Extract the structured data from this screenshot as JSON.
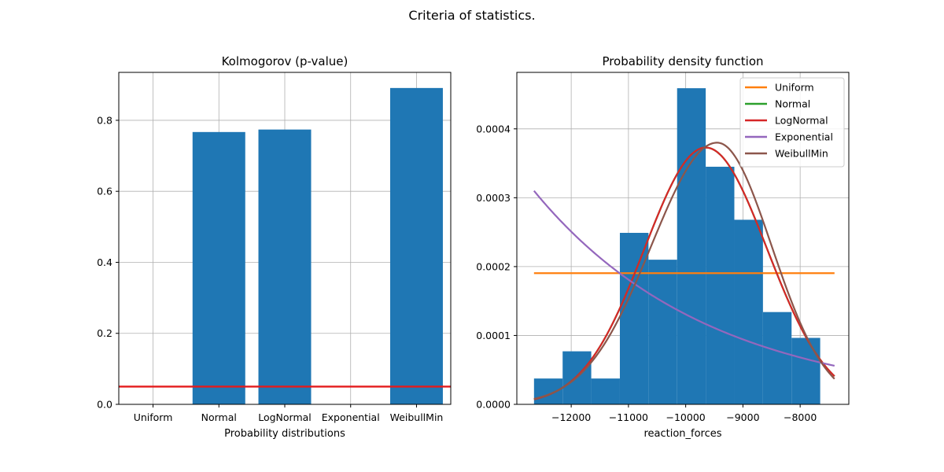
{
  "suptitle": "Criteria of statistics.",
  "chart_data": [
    {
      "type": "bar",
      "title": "Kolmogorov (p-value)",
      "xlabel": "Probability distributions",
      "ylabel": "",
      "categories": [
        "Uniform",
        "Normal",
        "LogNormal",
        "Exponential",
        "WeibullMin"
      ],
      "values": [
        0.0,
        0.767,
        0.774,
        0.0,
        0.891
      ],
      "ylim": [
        0,
        0.935
      ],
      "yticks": [
        0.0,
        0.2,
        0.4,
        0.6,
        0.8
      ],
      "ytick_labels": [
        "0.0",
        "0.2",
        "0.4",
        "0.6",
        "0.8"
      ],
      "threshold": 0.05,
      "bar_color": "#1f77b4",
      "threshold_color": "#e41a1c",
      "grid": true
    },
    {
      "type": "line",
      "title": "Probability density function",
      "xlabel": "reaction_forces",
      "ylabel": "",
      "xlim": [
        -12950,
        -7150
      ],
      "ylim": [
        0,
        0.000482
      ],
      "xticks": [
        -12000,
        -11000,
        -10000,
        -9000,
        -8000
      ],
      "xtick_labels": [
        "−12000",
        "−11000",
        "−10000",
        "−9000",
        "−8000"
      ],
      "yticks": [
        0,
        0.0001,
        0.0002,
        0.0003,
        0.0004
      ],
      "ytick_labels": [
        "0.0000",
        "0.0001",
        "0.0002",
        "0.0003",
        "0.0004"
      ],
      "grid": true,
      "legend_position": "upper right",
      "histogram": {
        "color": "#1f77b4",
        "bin_edges": [
          -12650,
          -12150,
          -11650,
          -11150,
          -10650,
          -10150,
          -9650,
          -9150,
          -8650,
          -8150,
          -7650,
          -7400
        ],
        "heights": [
          3.75e-05,
          7.7e-05,
          3.75e-05,
          0.000249,
          0.00021,
          0.000459,
          0.000345,
          0.000268,
          0.000134,
          9.65e-05,
          0
        ]
      },
      "series": [
        {
          "name": "Uniform",
          "color": "#ff7f0e",
          "kind": "uniform",
          "low": -12650,
          "high": -7400
        },
        {
          "name": "Normal",
          "color": "#2ca02c",
          "kind": "normal",
          "mu": -9650,
          "sigma": 1070
        },
        {
          "name": "LogNormal",
          "color": "#d62728",
          "kind": "normal",
          "mu": -9650,
          "sigma": 1070
        },
        {
          "name": "Exponential",
          "color": "#9467bd",
          "kind": "exponential",
          "a": 0.00031,
          "b": 5.6e-05,
          "x0": -12650,
          "x1": -7400
        },
        {
          "name": "WeibullMin",
          "color": "#8c564b",
          "kind": "skewnormal",
          "mode": -9450,
          "sigma_left": 1150,
          "sigma_right": 950
        }
      ]
    }
  ]
}
